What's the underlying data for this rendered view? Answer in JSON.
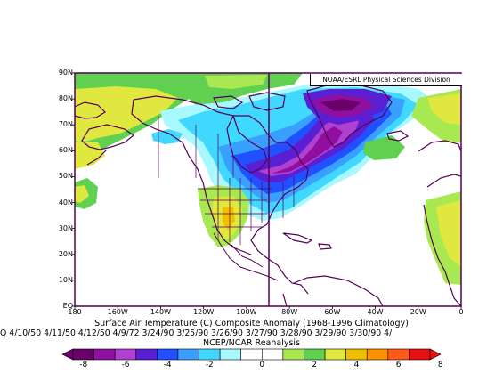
{
  "map": {
    "agency_label": "NOAA/ESRL Physical Sciences Division",
    "lat_labels": [
      "90N",
      "80N",
      "70N",
      "60N",
      "50N",
      "40N",
      "30N",
      "20N",
      "10N",
      "EQ"
    ],
    "lon_labels": [
      "180",
      "160W",
      "140W",
      "120W",
      "100W",
      "80W",
      "60W",
      "40W",
      "20W",
      "0"
    ],
    "colors": {
      "frame": "#550055",
      "coast": "#550055",
      "land_outline": "#550055"
    }
  },
  "caption": {
    "line1": "Surface Air Temperature (C) Composite Anomaly (1968-1996 Climatology)",
    "line2": "Q 4/10/50 4/11/50 4/12/50 4/9/72 3/24/90 3/25/90 3/26/90 3/27/90 3/28/90 3/29/90 3/30/90 4/",
    "line3": "NCEP/NCAR Reanalysis"
  },
  "colorbar": {
    "labels": [
      "-8",
      "-6",
      "-4",
      "-2",
      "0",
      "2",
      "4",
      "6",
      "8"
    ],
    "colors": [
      "#6a006a",
      "#8f0f9f",
      "#b040d0",
      "#5a1fd2",
      "#2050ff",
      "#3aa0ff",
      "#40d8ff",
      "#a8f8ff",
      "#ffffff",
      "#ffffff",
      "#a8e850",
      "#60d050",
      "#e0e840",
      "#f0c000",
      "#ff9000",
      "#ff5a1a",
      "#e81010"
    ]
  }
}
